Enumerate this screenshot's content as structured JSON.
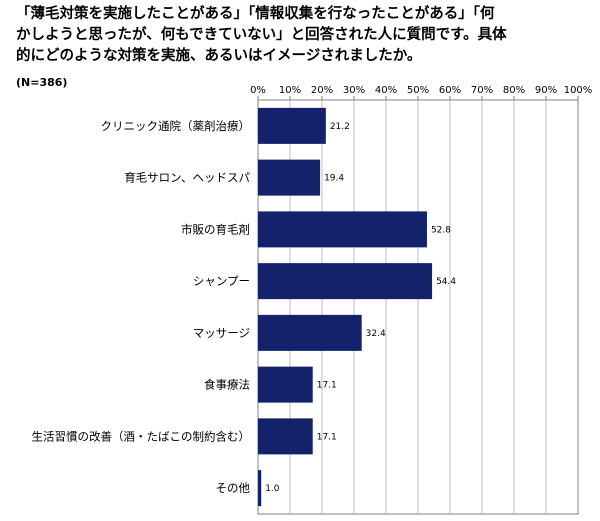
{
  "title_lines": [
    "「薄毛対策を実施したことがある」「情報収集を行なったことがある」「何",
    "かしようと思ったが、何もできていない」と回答された人に質問です。具体",
    "的にどのような対策を実施、あるいはイメージされましたか。"
  ],
  "note": "(N=386)",
  "colors": {
    "bar": "#14226b",
    "grid": "#bfbfbf",
    "axis": "#808080"
  },
  "chart_data": {
    "type": "bar",
    "orientation": "horizontal",
    "categories": [
      "クリニック通院（薬剤治療）",
      "育毛サロン、ヘッドスパ",
      "市販の育毛剤",
      "シャンプー",
      "マッサージ",
      "食事療法",
      "生活習慣の改善（酒・たばこの制約含む）",
      "その他"
    ],
    "values": [
      21.2,
      19.4,
      52.8,
      54.4,
      32.4,
      17.1,
      17.1,
      1.0
    ],
    "value_labels": [
      "21.2",
      "19.4",
      "52.8",
      "54.4",
      "32.4",
      "17.1",
      "17.1",
      "1.0"
    ],
    "x_ticks": [
      "0%",
      "10%",
      "20%",
      "30%",
      "40%",
      "50%",
      "60%",
      "70%",
      "80%",
      "90%",
      "100%"
    ],
    "xlim": [
      0,
      100
    ],
    "grid": true,
    "axis_position": "top"
  }
}
